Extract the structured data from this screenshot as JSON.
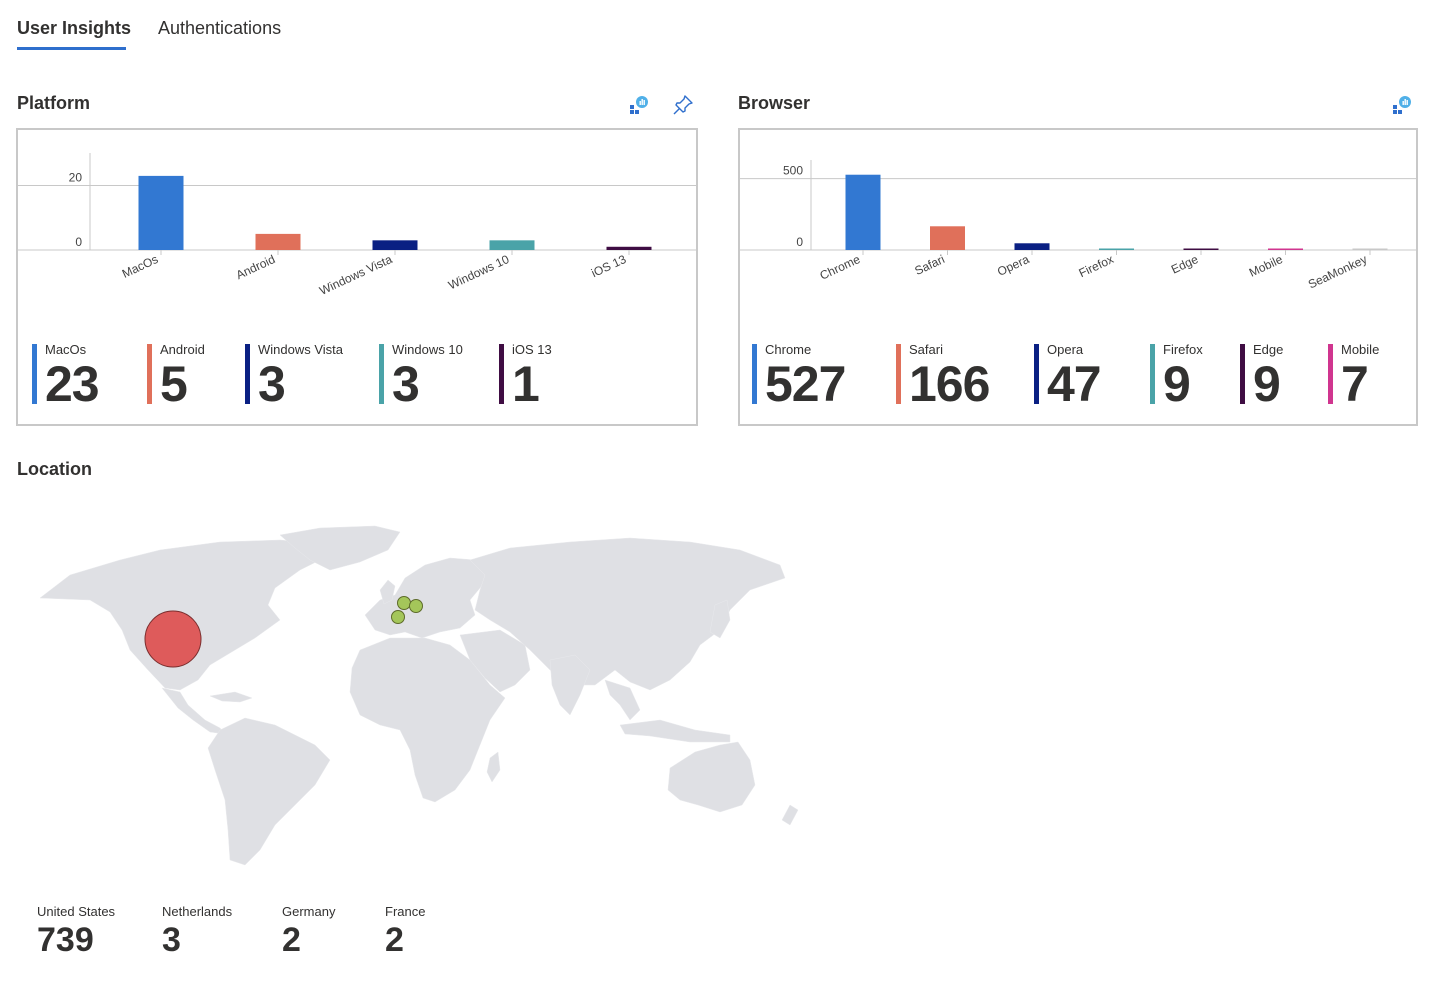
{
  "tabs": [
    {
      "label": "User Insights",
      "active": true
    },
    {
      "label": "Authentications",
      "active": false
    }
  ],
  "platform": {
    "title": "Platform",
    "icons": [
      "workbook-icon",
      "pin-icon"
    ],
    "chart_data": {
      "type": "bar",
      "categories": [
        "MacOs",
        "Android",
        "Windows Vista",
        "Windows 10",
        "iOS 13"
      ],
      "values": [
        23,
        5,
        3,
        3,
        1
      ],
      "colors": [
        "#3278d2",
        "#e0705a",
        "#0a2083",
        "#4aa3a8",
        "#3f0d43"
      ],
      "yticks": [
        0,
        20
      ],
      "ylim": [
        0,
        27
      ],
      "grid": true
    },
    "tiles": [
      {
        "label": "MacOs",
        "value": "23",
        "color": "#3278d2"
      },
      {
        "label": "Android",
        "value": "5",
        "color": "#e0705a"
      },
      {
        "label": "Windows Vista",
        "value": "3",
        "color": "#0a2083"
      },
      {
        "label": "Windows 10",
        "value": "3",
        "color": "#4aa3a8"
      },
      {
        "label": "iOS 13",
        "value": "1",
        "color": "#3f0d43"
      }
    ]
  },
  "browser": {
    "title": "Browser",
    "icons": [
      "workbook-icon"
    ],
    "chart_data": {
      "type": "bar",
      "categories": [
        "Chrome",
        "Safari",
        "Opera",
        "Firefox",
        "Edge",
        "Mobile",
        "SeaMonkey"
      ],
      "values": [
        527,
        166,
        47,
        9,
        9,
        7,
        3
      ],
      "colors": [
        "#3278d2",
        "#e0705a",
        "#0a2083",
        "#4aa3a8",
        "#3f0d43",
        "#d0358f",
        "#c8c8c8"
      ],
      "yticks": [
        0,
        500
      ],
      "ylim": [
        0,
        560
      ],
      "grid": true
    },
    "tiles": [
      {
        "label": "Chrome",
        "value": "527",
        "color": "#3278d2"
      },
      {
        "label": "Safari",
        "value": "166",
        "color": "#e0705a"
      },
      {
        "label": "Opera",
        "value": "47",
        "color": "#0a2083"
      },
      {
        "label": "Firefox",
        "value": "9",
        "color": "#4aa3a8"
      },
      {
        "label": "Edge",
        "value": "9",
        "color": "#3f0d43"
      },
      {
        "label": "Mobile",
        "value": "7",
        "color": "#d0358f"
      }
    ]
  },
  "location": {
    "title": "Location",
    "bubble_colors": {
      "large": "#de5b5b",
      "small": "#a4c65a"
    },
    "items": [
      {
        "label": "United States",
        "value": "739"
      },
      {
        "label": "Netherlands",
        "value": "3"
      },
      {
        "label": "Germany",
        "value": "2"
      },
      {
        "label": "France",
        "value": "2"
      }
    ]
  }
}
